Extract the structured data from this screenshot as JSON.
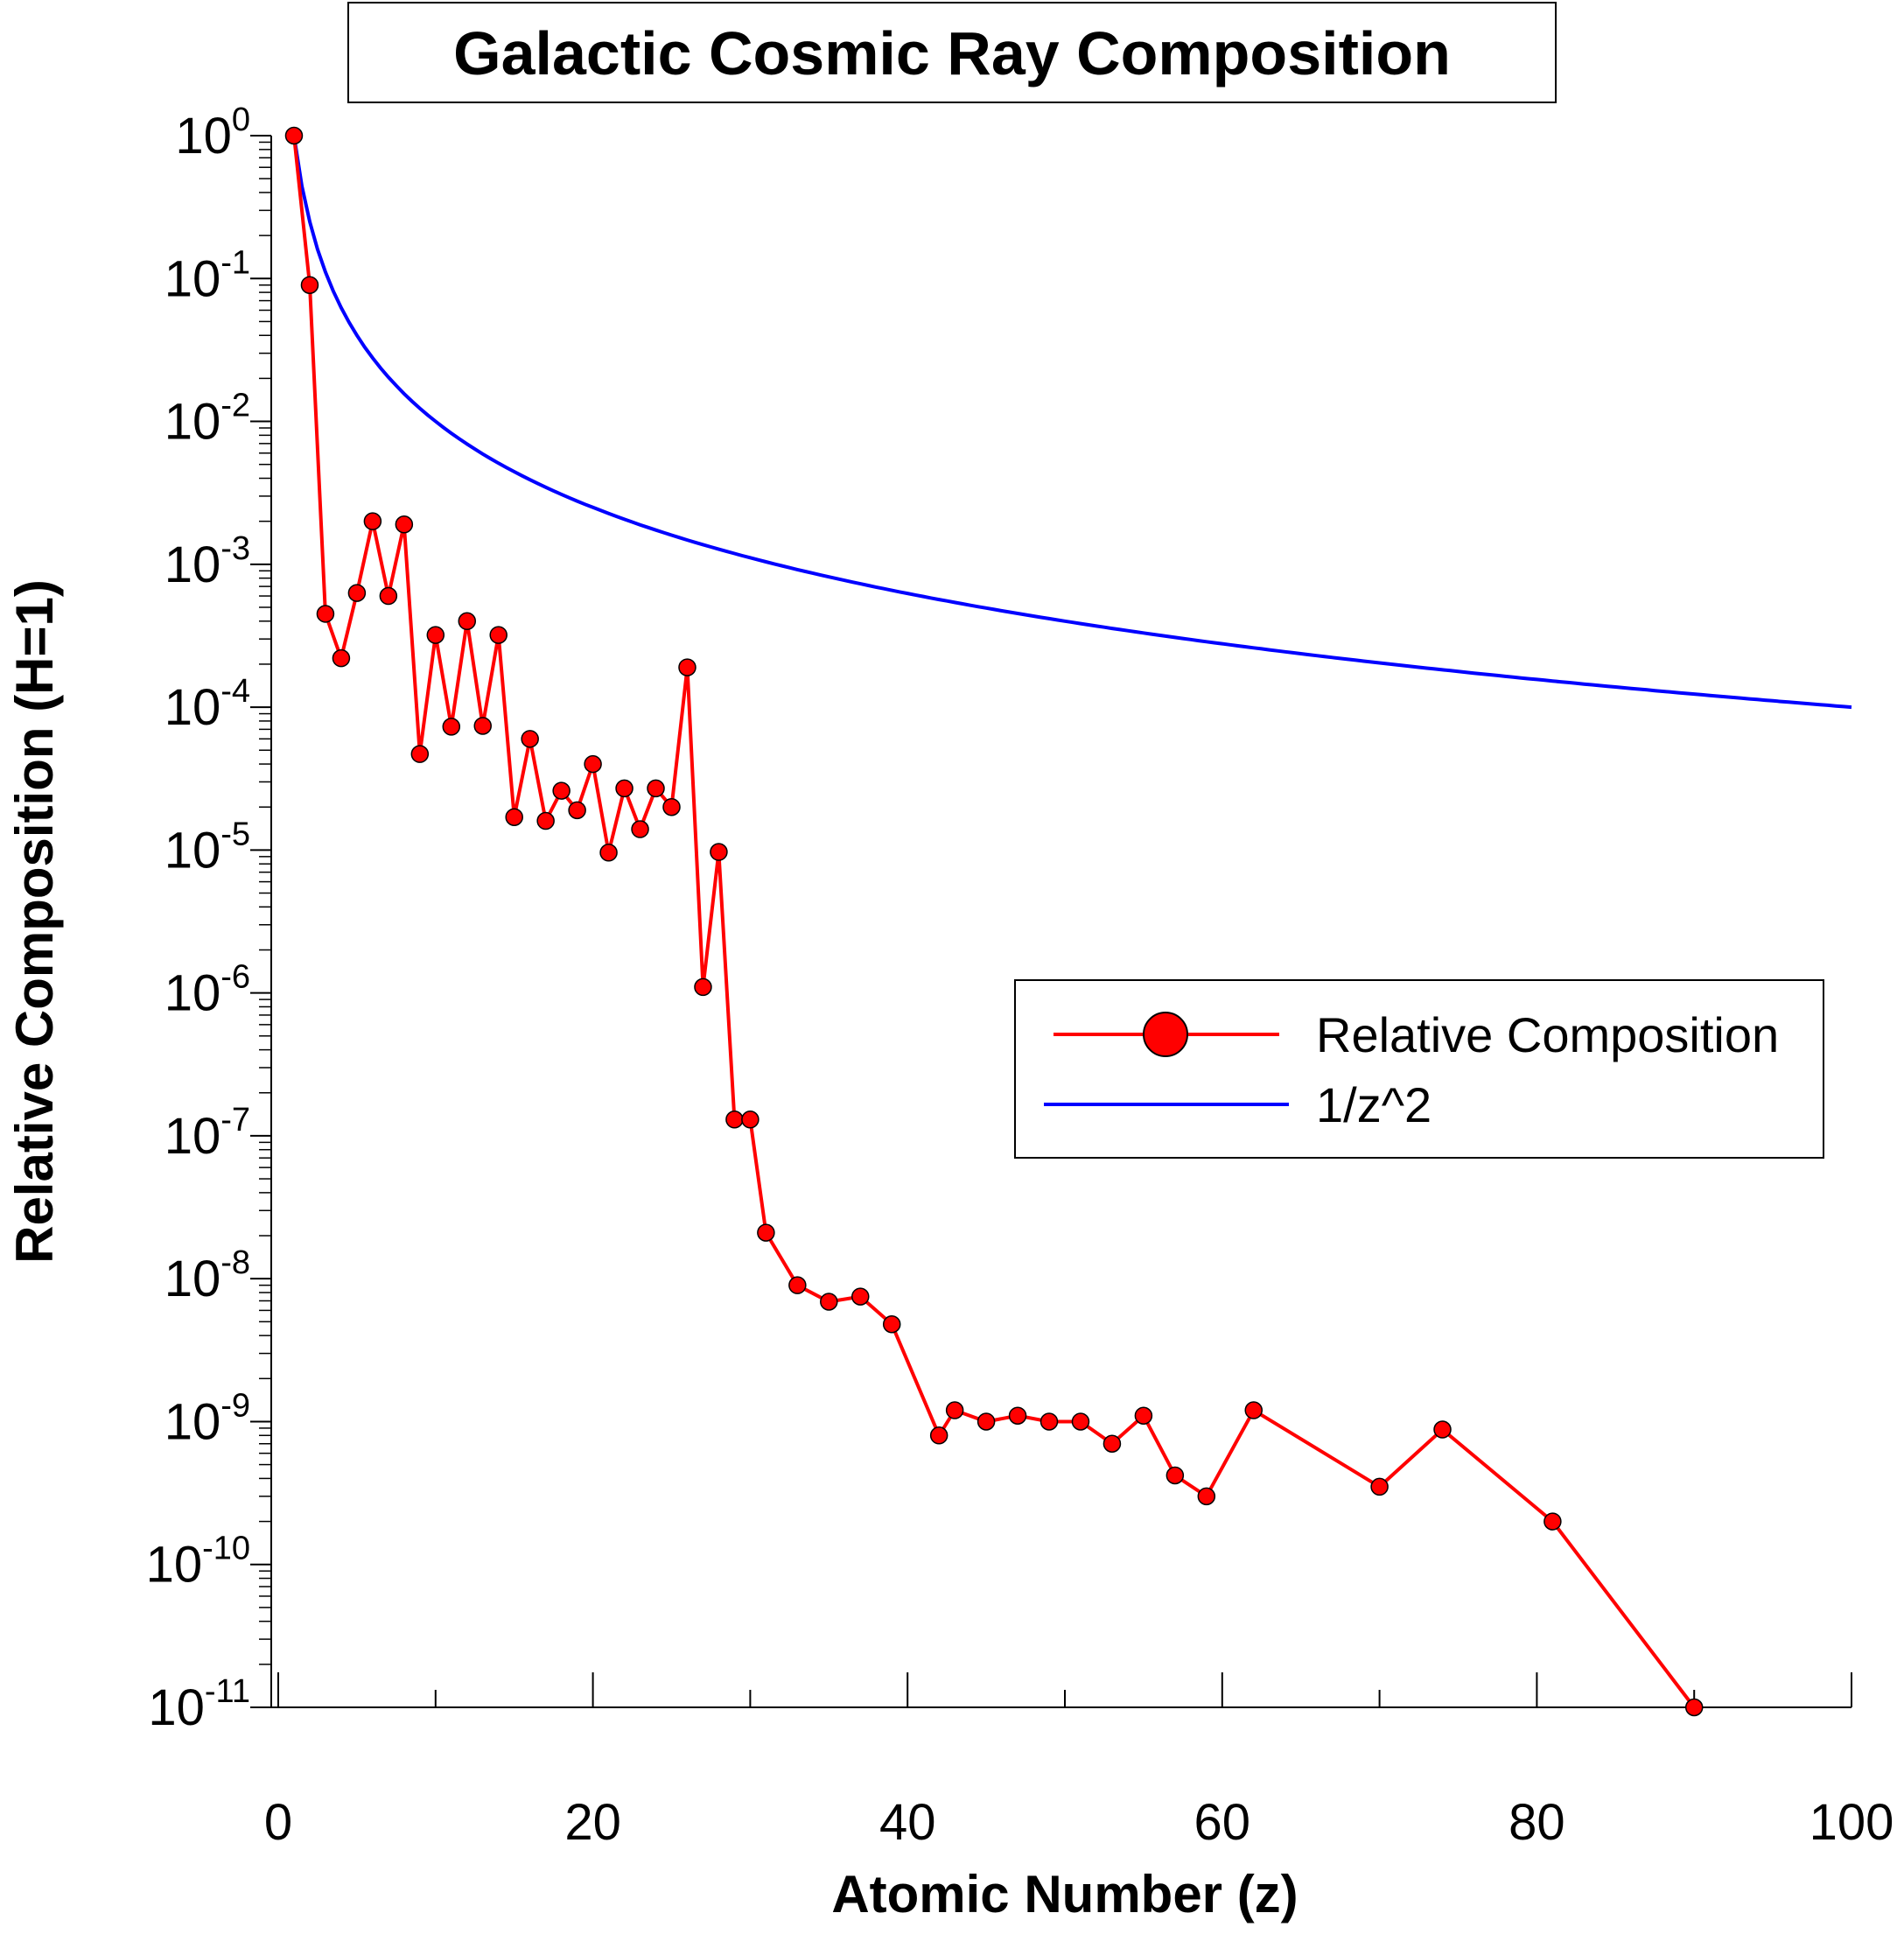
{
  "chart_data": {
    "type": "line",
    "title": "Galactic Cosmic Ray Composition",
    "xlabel": "Atomic Number (z)",
    "ylabel": "Relative Composition (H=1)",
    "xlim": [
      0,
      100
    ],
    "ylim_log10": [
      -11,
      0
    ],
    "y_scale": "log",
    "x_ticks": [
      0,
      20,
      40,
      60,
      80,
      100
    ],
    "x_tick_labels": [
      "0",
      "20",
      "40",
      "60",
      "80",
      "100"
    ],
    "y_tick_exponents": [
      0,
      -1,
      -2,
      -3,
      -4,
      -5,
      -6,
      -7,
      -8,
      -9,
      -10,
      -11
    ],
    "y_tick_base": "10",
    "y_tick_exp_labels": [
      "0",
      "-1",
      "-2",
      "-3",
      "-4",
      "-5",
      "-6",
      "-7",
      "-8",
      "-9",
      "-10",
      "-11"
    ],
    "legend_position": "center-right",
    "series": [
      {
        "name": "Relative Composition",
        "color": "#ff0000",
        "marker": "circle",
        "x": [
          1,
          2,
          3,
          4,
          5,
          6,
          7,
          8,
          9,
          10,
          11,
          12,
          13,
          14,
          15,
          16,
          17,
          18,
          19,
          20,
          21,
          22,
          23,
          24,
          25,
          26,
          27,
          28,
          29,
          30,
          31,
          33,
          35,
          37,
          39,
          42,
          43,
          45,
          47,
          49,
          51,
          53,
          55,
          57,
          59,
          62,
          70,
          74,
          81,
          90
        ],
        "y": [
          1,
          0.09,
          0.00045,
          0.00022,
          0.00063,
          0.002,
          0.0006,
          0.0019,
          4.7e-05,
          0.00032,
          7.3e-05,
          0.0004,
          7.4e-05,
          0.00032,
          1.7e-05,
          6e-05,
          1.6e-05,
          2.6e-05,
          1.9e-05,
          4e-05,
          9.6e-06,
          2.7e-05,
          1.4e-05,
          2.7e-05,
          2e-05,
          0.00019,
          1.1e-06,
          9.7e-06,
          1.3e-07,
          1.3e-07,
          2.1e-08,
          9e-09,
          6.9e-09,
          7.5e-09,
          4.8e-09,
          8e-10,
          1.2e-09,
          1e-09,
          1.1e-09,
          1e-09,
          1e-09,
          7e-10,
          1.1e-09,
          4.2e-10,
          3e-10,
          1.2e-09,
          3.5e-10,
          8.8e-10,
          2e-10,
          1e-11
        ]
      },
      {
        "name": "1/z^2",
        "color": "#0000ff",
        "marker": "none",
        "formula": "1/z^2",
        "x_range": [
          1,
          100
        ]
      }
    ]
  }
}
